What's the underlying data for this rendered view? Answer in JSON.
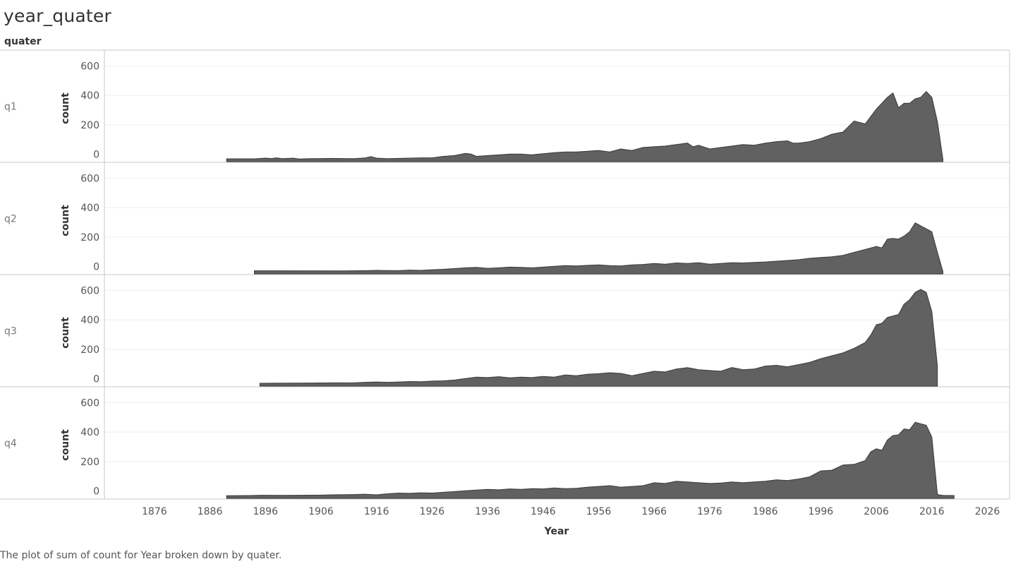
{
  "title": "year_quater",
  "facet_header": "quater",
  "caption": "The plot of sum of count for Year broken down by quater.",
  "colors": {
    "area_fill": "#555555",
    "area_stroke": "#3a3a3a",
    "gridline": "#eeeeee",
    "divider": "#c8c8c8",
    "background": "#ffffff"
  },
  "chart_data": {
    "type": "area",
    "xlabel": "Year",
    "ylabel": "count",
    "xlim": [
      1867,
      2030
    ],
    "ylim": [
      -40,
      640
    ],
    "x_ticks": [
      1876,
      1886,
      1896,
      1906,
      1916,
      1926,
      1936,
      1946,
      1956,
      1966,
      1976,
      1986,
      1996,
      2006,
      2016,
      2026
    ],
    "y_ticks": [
      0,
      200,
      400,
      600
    ],
    "grid": true,
    "facet_by": "quater",
    "series": [
      {
        "name": "q1",
        "x": [
          1889,
          1891,
          1892,
          1894,
          1896,
          1897,
          1898,
          1899,
          1900,
          1901,
          1902,
          1904,
          1906,
          1908,
          1910,
          1912,
          1914,
          1915,
          1916,
          1918,
          1920,
          1922,
          1924,
          1926,
          1928,
          1930,
          1932,
          1933,
          1934,
          1936,
          1938,
          1940,
          1942,
          1944,
          1946,
          1948,
          1950,
          1952,
          1954,
          1956,
          1958,
          1960,
          1962,
          1964,
          1966,
          1968,
          1970,
          1972,
          1973,
          1974,
          1976,
          1978,
          1980,
          1982,
          1984,
          1986,
          1988,
          1990,
          1991,
          1992,
          1994,
          1996,
          1998,
          2000,
          2002,
          2004,
          2005,
          2006,
          2008,
          2009,
          2010,
          2011,
          2012,
          2013,
          2014,
          2015,
          2016,
          2017,
          2018
        ],
        "values": [
          3,
          3,
          3,
          3,
          8,
          5,
          10,
          4,
          6,
          8,
          2,
          4,
          5,
          6,
          5,
          4,
          10,
          18,
          8,
          4,
          6,
          8,
          10,
          10,
          20,
          25,
          40,
          35,
          20,
          25,
          30,
          35,
          35,
          30,
          38,
          45,
          50,
          50,
          55,
          60,
          50,
          70,
          60,
          80,
          85,
          90,
          100,
          110,
          85,
          95,
          70,
          80,
          90,
          100,
          95,
          110,
          120,
          125,
          110,
          110,
          120,
          140,
          170,
          185,
          260,
          240,
          290,
          340,
          420,
          450,
          350,
          380,
          380,
          410,
          420,
          460,
          420,
          255,
          0
        ]
      },
      {
        "name": "q2",
        "x": [
          1894,
          1898,
          1910,
          1914,
          1916,
          1918,
          1920,
          1922,
          1924,
          1926,
          1928,
          1930,
          1932,
          1934,
          1936,
          1938,
          1940,
          1942,
          1944,
          1946,
          1948,
          1950,
          1952,
          1954,
          1956,
          1958,
          1960,
          1962,
          1964,
          1966,
          1968,
          1970,
          1972,
          1974,
          1976,
          1978,
          1980,
          1982,
          1984,
          1986,
          1988,
          1990,
          1992,
          1994,
          1996,
          1998,
          2000,
          2002,
          2004,
          2006,
          2007,
          2008,
          2009,
          2010,
          2011,
          2012,
          2013,
          2014,
          2015,
          2016,
          2017,
          2018
        ],
        "values": [
          5,
          5,
          4,
          6,
          8,
          7,
          6,
          10,
          8,
          12,
          15,
          20,
          25,
          28,
          22,
          25,
          30,
          28,
          25,
          30,
          35,
          40,
          38,
          42,
          45,
          40,
          38,
          45,
          48,
          55,
          50,
          58,
          55,
          60,
          50,
          55,
          60,
          58,
          62,
          65,
          70,
          75,
          80,
          90,
          95,
          100,
          110,
          130,
          150,
          170,
          160,
          220,
          225,
          220,
          240,
          270,
          330,
          310,
          290,
          270,
          130,
          0
        ]
      },
      {
        "name": "q3",
        "x": [
          1895,
          1904,
          1908,
          1912,
          1914,
          1916,
          1918,
          1920,
          1922,
          1924,
          1926,
          1928,
          1930,
          1932,
          1934,
          1936,
          1938,
          1940,
          1942,
          1944,
          1946,
          1948,
          1950,
          1952,
          1954,
          1956,
          1958,
          1960,
          1962,
          1964,
          1966,
          1968,
          1970,
          1972,
          1974,
          1976,
          1978,
          1980,
          1982,
          1984,
          1986,
          1988,
          1990,
          1992,
          1994,
          1996,
          1998,
          2000,
          2002,
          2004,
          2005,
          2006,
          2007,
          2008,
          2009,
          2010,
          2011,
          2012,
          2013,
          2014,
          2015,
          2016,
          2017
        ],
        "values": [
          3,
          5,
          6,
          7,
          10,
          12,
          10,
          12,
          15,
          14,
          18,
          20,
          25,
          35,
          45,
          42,
          48,
          40,
          45,
          42,
          50,
          45,
          60,
          55,
          65,
          68,
          75,
          70,
          55,
          70,
          85,
          80,
          100,
          110,
          95,
          90,
          85,
          110,
          95,
          100,
          120,
          125,
          115,
          130,
          145,
          170,
          190,
          210,
          240,
          280,
          330,
          400,
          410,
          450,
          460,
          470,
          540,
          570,
          620,
          640,
          620,
          490,
          120
        ]
      },
      {
        "name": "q4",
        "x": [
          1889,
          1893,
          1895,
          1899,
          1902,
          1906,
          1908,
          1912,
          1914,
          1916,
          1918,
          1920,
          1922,
          1924,
          1926,
          1928,
          1930,
          1932,
          1934,
          1936,
          1938,
          1940,
          1942,
          1944,
          1946,
          1948,
          1950,
          1952,
          1954,
          1956,
          1958,
          1960,
          1962,
          1964,
          1966,
          1968,
          1970,
          1972,
          1974,
          1976,
          1978,
          1980,
          1982,
          1984,
          1986,
          1988,
          1990,
          1992,
          1994,
          1996,
          1998,
          2000,
          2002,
          2004,
          2005,
          2006,
          2007,
          2008,
          2009,
          2010,
          2011,
          2012,
          2013,
          2014,
          2015,
          2016,
          2017,
          2018,
          2020
        ],
        "values": [
          2,
          3,
          5,
          4,
          5,
          6,
          8,
          10,
          12,
          8,
          15,
          20,
          18,
          22,
          20,
          25,
          30,
          35,
          40,
          45,
          42,
          48,
          45,
          50,
          48,
          55,
          50,
          52,
          60,
          65,
          70,
          60,
          65,
          70,
          90,
          85,
          100,
          95,
          90,
          85,
          88,
          95,
          90,
          95,
          100,
          110,
          105,
          115,
          130,
          170,
          175,
          210,
          215,
          240,
          300,
          320,
          310,
          380,
          410,
          415,
          455,
          450,
          500,
          490,
          480,
          400,
          10,
          4,
          3
        ]
      }
    ]
  }
}
